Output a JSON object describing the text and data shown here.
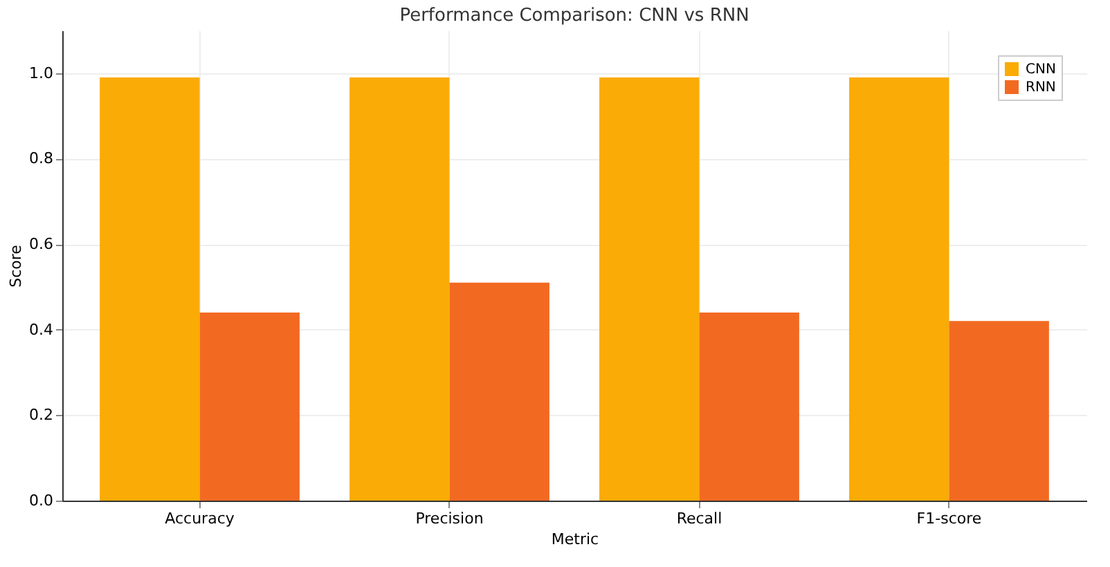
{
  "chart_data": {
    "type": "bar",
    "title": "Performance Comparison: CNN vs RNN",
    "xlabel": "Metric",
    "ylabel": "Score",
    "categories": [
      "Accuracy",
      "Precision",
      "Recall",
      "F1-score"
    ],
    "series": [
      {
        "name": "CNN",
        "color": "#fbab05",
        "values": [
          0.99,
          0.99,
          0.99,
          0.99
        ]
      },
      {
        "name": "RNN",
        "color": "#f26a22",
        "values": [
          0.44,
          0.51,
          0.44,
          0.42
        ]
      }
    ],
    "ylim": [
      0,
      1.1
    ],
    "yticks": [
      {
        "value": 0,
        "label": "0.0"
      },
      0.2,
      0.4,
      0.6,
      0.8,
      {
        "value": 1,
        "label": "1.0"
      }
    ],
    "grid": true,
    "legend": "top right"
  }
}
